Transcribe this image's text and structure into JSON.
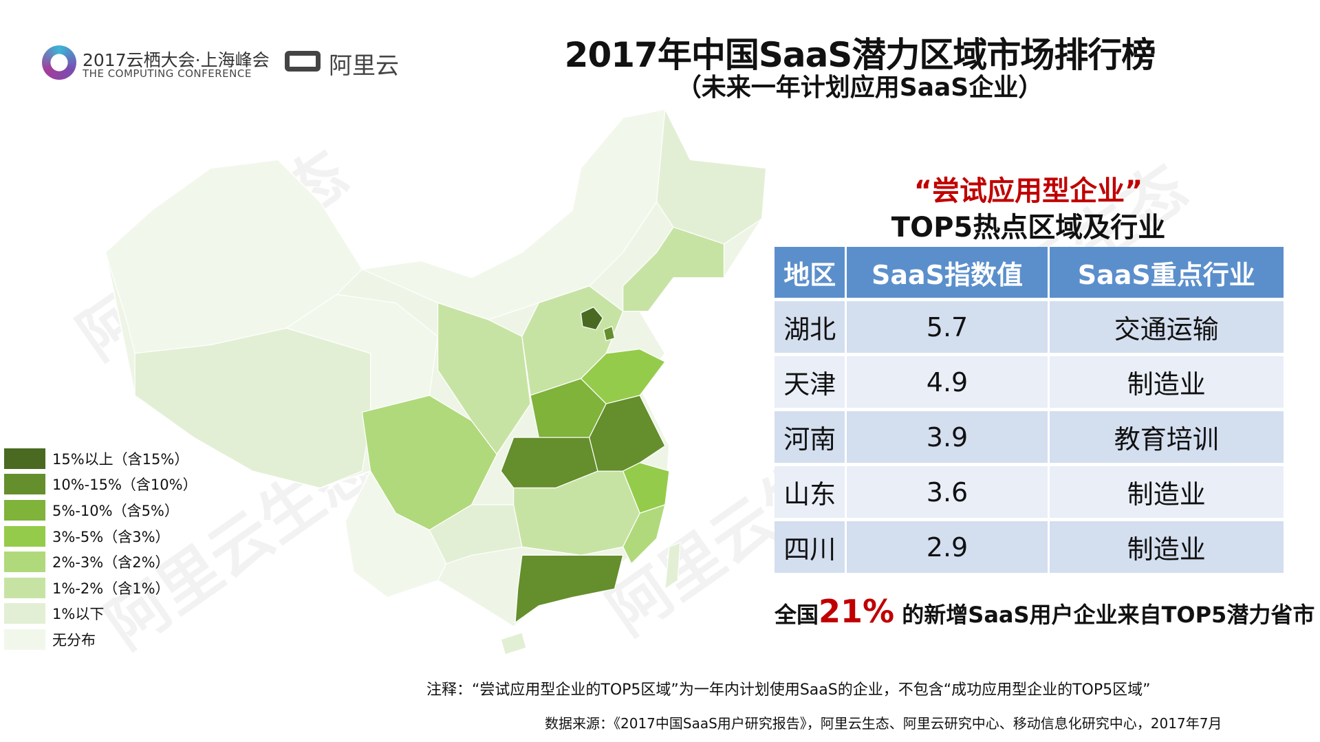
{
  "header": {
    "title": "2017年中国SaaS潜力区域市场排行榜",
    "subtitle": "（未来一年计划应用SaaS企业）",
    "logo_conference_cn": "2017云栖大会·上海峰会",
    "logo_conference_en": "THE COMPUTING CONFERENCE",
    "logo_aliyun": "阿里云"
  },
  "watermark": "阿里云生态",
  "panel": {
    "red_heading": "“尝试应用型企业”",
    "heading": "TOP5热点区域及行业",
    "columns": [
      "地区",
      "SaaS指数值",
      "SaaS重点行业"
    ],
    "rows": [
      {
        "region": "湖北",
        "index": "5.7",
        "industry": "交通运输"
      },
      {
        "region": "天津",
        "index": "4.9",
        "industry": "制造业"
      },
      {
        "region": "河南",
        "index": "3.9",
        "industry": "教育培训"
      },
      {
        "region": "山东",
        "index": "3.6",
        "industry": "制造业"
      },
      {
        "region": "四川",
        "index": "2.9",
        "industry": "制造业"
      }
    ],
    "summary_prefix": "全国",
    "summary_pct": "21%",
    "summary_suffix": " 的新增SaaS用户企业来自",
    "summary_bold": "TOP5潜力省市"
  },
  "legend": [
    {
      "label": "15%以上（含15%）",
      "color": "#4a6a22"
    },
    {
      "label": "10%-15%（含10%）",
      "color": "#658e2c"
    },
    {
      "label": "5%-10%（含5%）",
      "color": "#7fb33a"
    },
    {
      "label": "3%-5%（含3%）",
      "color": "#95cb4a"
    },
    {
      "label": "2%-3%（含2%）",
      "color": "#b0d97b"
    },
    {
      "label": "1%-2%（含1%）",
      "color": "#c7e3a4"
    },
    {
      "label": "1%以下",
      "color": "#e2efd4"
    },
    {
      "label": "无分布",
      "color": "#f2f7ec"
    }
  ],
  "notes": {
    "note": "注释：“尝试应用型企业的TOP5区域”为一年内计划使用SaaS的企业，不包含“成功应用型企业的TOP5区域”",
    "source": "数据来源：《2017中国SaaS用户研究报告》，阿里云生态、阿里云研究中心、移动信息化研究中心，2017年7月"
  }
}
